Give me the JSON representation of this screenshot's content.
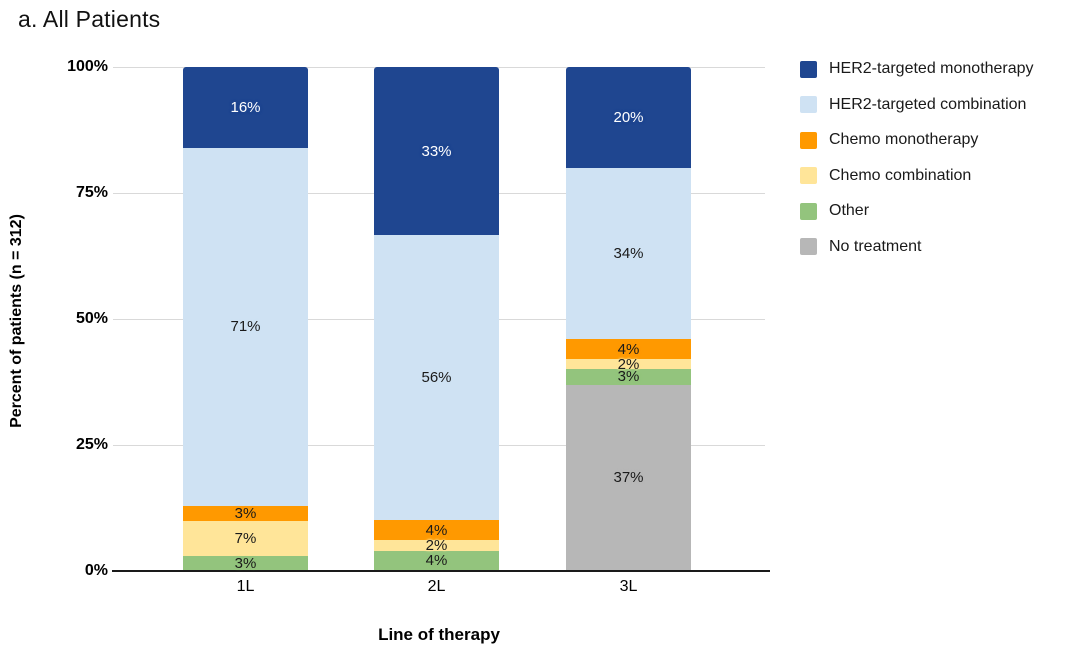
{
  "chart_data": {
    "type": "bar",
    "stacked": true,
    "title": "a. All Patients",
    "xlabel": "Line of therapy",
    "ylabel": "Percent of patients (n = 312)",
    "categories": [
      "1L",
      "2L",
      "3L"
    ],
    "series": [
      {
        "name": "HER2-targeted monotherapy",
        "color": "#1f4690",
        "label_color": "#ffffff",
        "values": [
          16,
          33,
          20
        ]
      },
      {
        "name": "HER2-targeted combination",
        "color": "#cfe2f3",
        "label_color": "#1a1a1a",
        "values": [
          71,
          56,
          34
        ]
      },
      {
        "name": "Chemo monotherapy",
        "color": "#ff9900",
        "label_color": "#1a1a1a",
        "values": [
          3,
          4,
          4
        ]
      },
      {
        "name": "Chemo combination",
        "color": "#ffe599",
        "label_color": "#1a1a1a",
        "values": [
          7,
          2,
          2
        ]
      },
      {
        "name": "Other",
        "color": "#93c47d",
        "label_color": "#1a1a1a",
        "values": [
          3,
          4,
          3
        ]
      },
      {
        "name": "No treatment",
        "color": "#b7b7b7",
        "label_color": "#1a1a1a",
        "values": [
          0,
          0,
          37
        ]
      }
    ],
    "stack_order_bottom_to_top": [
      5,
      4,
      3,
      2,
      1,
      0
    ],
    "value_label_suffix": "%",
    "yticks": [
      {
        "label": "0%",
        "value": 0
      },
      {
        "label": "25%",
        "value": 25
      },
      {
        "label": "50%",
        "value": 50
      },
      {
        "label": "75%",
        "value": 75
      },
      {
        "label": "100%",
        "value": 100
      }
    ],
    "ylim": [
      0,
      100
    ],
    "grid": true,
    "legend_position": "right",
    "gridline_color": "#d9d9d9",
    "axis_line_color": "#1a1a1a"
  }
}
